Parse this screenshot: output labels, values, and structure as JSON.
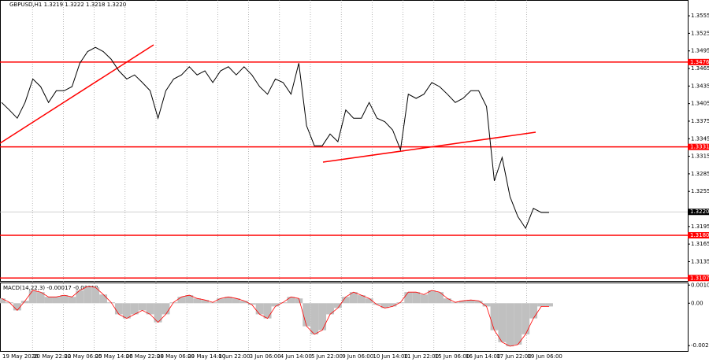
{
  "chart_data": [
    {
      "type": "line",
      "header": "GBPUSD,H1  1.3219 1.3222 1.3218 1.3220",
      "color": "#000000",
      "ylim": [
        1.3102,
        1.3582
      ],
      "yticks": [
        1.3555,
        1.3525,
        1.3495,
        1.3465,
        1.3435,
        1.3405,
        1.3375,
        1.3345,
        1.3315,
        1.3285,
        1.3255,
        1.3195,
        1.3165,
        1.3135
      ],
      "levels": [
        1.3476,
        1.3331,
        {
          "value": 1.318,
          "label": "1.3180"
        },
        1.3107
      ],
      "level_color": "#ff0000",
      "current_price": {
        "value": 1.322,
        "label": "1.3220"
      },
      "values": [
        1.3407,
        1.3394,
        1.338,
        1.3407,
        1.3447,
        1.3434,
        1.3407,
        1.3427,
        1.3427,
        1.3434,
        1.3474,
        1.3494,
        1.3501,
        1.3494,
        1.3481,
        1.3461,
        1.3447,
        1.3454,
        1.3441,
        1.3427,
        1.338,
        1.3427,
        1.3447,
        1.3454,
        1.3468,
        1.3454,
        1.3461,
        1.3441,
        1.3461,
        1.3468,
        1.3454,
        1.3468,
        1.3454,
        1.3434,
        1.3421,
        1.3447,
        1.3441,
        1.3421,
        1.3474,
        1.3367,
        1.3333,
        1.3333,
        1.3353,
        1.334,
        1.3394,
        1.338,
        1.338,
        1.3407,
        1.338,
        1.3374,
        1.336,
        1.3326,
        1.3421,
        1.3414,
        1.3421,
        1.3441,
        1.3434,
        1.3421,
        1.3407,
        1.3414,
        1.3427,
        1.3427,
        1.34,
        1.3273,
        1.3313,
        1.3246,
        1.3212,
        1.3192,
        1.3226,
        1.3219,
        1.3219
      ]
    },
    {
      "type": "bar",
      "title": "MACD(14,22,3) -0.00017 -0.00019",
      "color": "#c0c0c0",
      "signal_color": "#ff0000",
      "ylim": [
        -0.00284,
        0.00121
      ],
      "yticks": [
        0.00106,
        {
          "value": 0,
          "label": "0.00"
        },
        -0.00248
      ],
      "values": [
        0.00028,
        5e-05,
        -0.00042,
        0.00014,
        0.00075,
        0.00065,
        0.00037,
        0.00037,
        0.00047,
        0.00037,
        0.00075,
        0.00098,
        0.00093,
        0.00051,
        5e-05,
        -0.00065,
        -0.00089,
        -0.00065,
        -0.00042,
        -0.00065,
        -0.00112,
        -0.00065,
        5e-05,
        0.00037,
        0.00047,
        0.00028,
        0.00019,
        5e-05,
        0.00028,
        0.00037,
        0.00028,
        0.00014,
        -9e-05,
        -0.00065,
        -0.00089,
        -0.00019,
        5e-05,
        0.00037,
        0.00028,
        -0.00135,
        -0.00182,
        -0.00158,
        -0.00065,
        -0.00028,
        0.00037,
        0.00065,
        0.00047,
        0.00028,
        -9e-05,
        -0.00028,
        -0.00019,
        5e-05,
        0.00065,
        0.00065,
        0.00051,
        0.00075,
        0.00065,
        0.00028,
        5e-05,
        0.00014,
        0.00019,
        0.00014,
        -0.00019,
        -0.00158,
        -0.00228,
        -0.00252,
        -0.00242,
        -0.00182,
        -0.00089,
        -0.00019,
        -0.00019
      ],
      "x_labels": [
        "19 May 2026",
        "20 May 22:00",
        "22 May 06:00",
        "25 May 14:00",
        "26 May 22:00",
        "28 May 06:00",
        "29 May 14:00",
        "1 Jun 22:00",
        "3 Jun 06:00",
        "4 Jun 14:00",
        "5 Jun 22:00",
        "9 Jun 06:00",
        "10 Jun 14:00",
        "11 Jun 22:00",
        "15 Jun 06:00",
        "16 Jun 14:00",
        "17 Jun 22:00",
        "19 Jun 06:00"
      ]
    }
  ]
}
